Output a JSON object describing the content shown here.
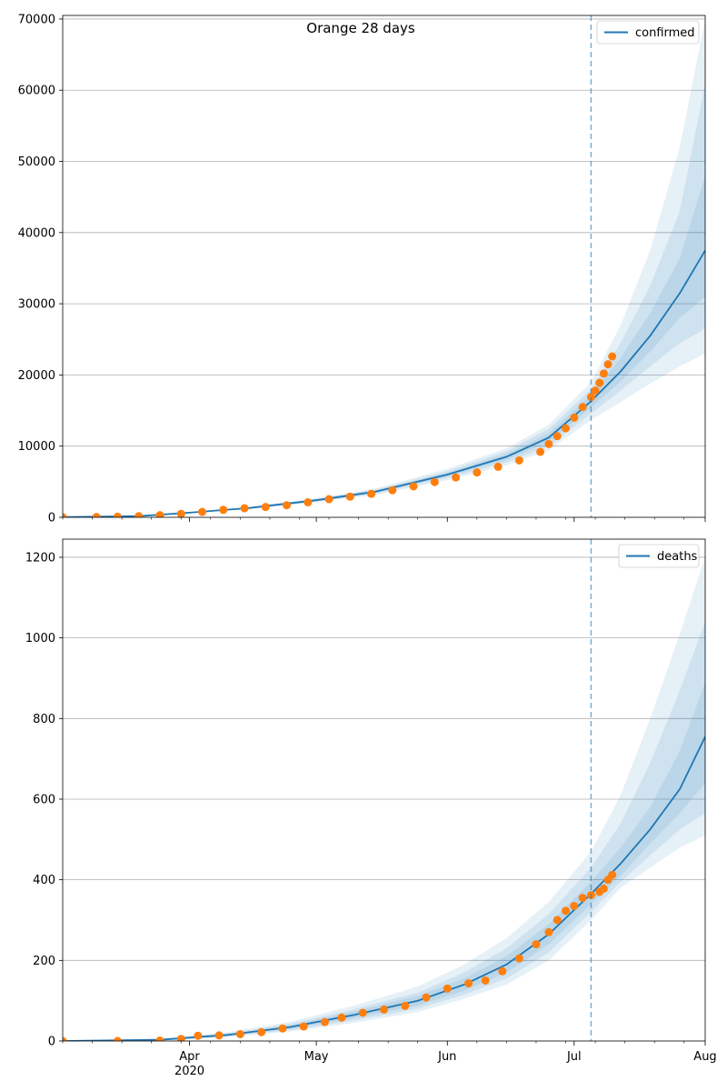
{
  "figure": {
    "title": "Orange 28 days"
  },
  "colors": {
    "median_line": "#1f77b4",
    "band": "#1f77b4",
    "observed": "#ff7f0e",
    "forecast_start": "#1f77b4",
    "grid": "#b0b0b0"
  },
  "x_axis": {
    "range": [
      "2020-03-02",
      "2020-08-01"
    ],
    "major_ticks": [
      {
        "date": "2020-04-01",
        "label": "Apr",
        "sublabel": "2020"
      },
      {
        "date": "2020-05-01",
        "label": "May",
        "sublabel": ""
      },
      {
        "date": "2020-06-01",
        "label": "Jun",
        "sublabel": ""
      },
      {
        "date": "2020-07-01",
        "label": "Jul",
        "sublabel": ""
      },
      {
        "date": "2020-08-01",
        "label": "Aug",
        "sublabel": ""
      }
    ]
  },
  "chart_data": [
    {
      "type": "line",
      "legend": {
        "label": "confirmed",
        "placement": "top-right"
      },
      "x_range": [
        "2020-03-02",
        "2020-08-01"
      ],
      "ylim": [
        0,
        70500
      ],
      "yticks": [
        "0",
        "10000",
        "20000",
        "30000",
        "40000",
        "50000",
        "60000",
        "70000"
      ],
      "ytick_values": [
        0,
        10000,
        20000,
        30000,
        40000,
        50000,
        60000,
        70000
      ],
      "grid": "horizontal",
      "forecast_start": "2020-07-05",
      "observed": [
        {
          "x": "2020-03-02",
          "y": 20
        },
        {
          "x": "2020-03-10",
          "y": 40
        },
        {
          "x": "2020-03-15",
          "y": 80
        },
        {
          "x": "2020-03-20",
          "y": 160
        },
        {
          "x": "2020-03-25",
          "y": 300
        },
        {
          "x": "2020-03-30",
          "y": 480
        },
        {
          "x": "2020-04-04",
          "y": 760
        },
        {
          "x": "2020-04-09",
          "y": 1050
        },
        {
          "x": "2020-04-14",
          "y": 1270
        },
        {
          "x": "2020-04-19",
          "y": 1450
        },
        {
          "x": "2020-04-24",
          "y": 1700
        },
        {
          "x": "2020-04-29",
          "y": 2100
        },
        {
          "x": "2020-05-04",
          "y": 2550
        },
        {
          "x": "2020-05-09",
          "y": 2900
        },
        {
          "x": "2020-05-14",
          "y": 3300
        },
        {
          "x": "2020-05-19",
          "y": 3800
        },
        {
          "x": "2020-05-24",
          "y": 4350
        },
        {
          "x": "2020-05-29",
          "y": 4950
        },
        {
          "x": "2020-06-03",
          "y": 5600
        },
        {
          "x": "2020-06-08",
          "y": 6300
        },
        {
          "x": "2020-06-13",
          "y": 7100
        },
        {
          "x": "2020-06-18",
          "y": 8000
        },
        {
          "x": "2020-06-23",
          "y": 9200
        },
        {
          "x": "2020-06-25",
          "y": 10300
        },
        {
          "x": "2020-06-27",
          "y": 11400
        },
        {
          "x": "2020-06-29",
          "y": 12500
        },
        {
          "x": "2020-07-01",
          "y": 14000
        },
        {
          "x": "2020-07-03",
          "y": 15500
        },
        {
          "x": "2020-07-05",
          "y": 16900
        },
        {
          "x": "2020-07-06",
          "y": 17800
        },
        {
          "x": "2020-07-07",
          "y": 18900
        },
        {
          "x": "2020-07-08",
          "y": 20200
        },
        {
          "x": "2020-07-09",
          "y": 21500
        },
        {
          "x": "2020-07-10",
          "y": 22600
        }
      ],
      "series": [
        {
          "name": "confirmed",
          "x": [
            "2020-03-02",
            "2020-03-20",
            "2020-04-01",
            "2020-04-15",
            "2020-05-01",
            "2020-05-15",
            "2020-06-01",
            "2020-06-15",
            "2020-06-25",
            "2020-07-05",
            "2020-07-12",
            "2020-07-19",
            "2020-07-26",
            "2020-08-01"
          ],
          "median": [
            20,
            160,
            650,
            1300,
            2400,
            3600,
            6000,
            8500,
            11200,
            16300,
            20500,
            25500,
            31500,
            37500
          ],
          "bands": [
            {
              "lower": [
                15,
                140,
                580,
                1150,
                2100,
                3150,
                5200,
                7300,
                9400,
                13700,
                16200,
                18800,
                21200,
                23000
              ],
              "upper": [
                25,
                180,
                720,
                1450,
                2700,
                4050,
                6800,
                9700,
                13000,
                19000,
                27000,
                37500,
                52000,
                70000
              ]
            },
            {
              "lower": [
                16,
                145,
                600,
                1200,
                2200,
                3300,
                5500,
                7700,
                10000,
                14600,
                17800,
                21200,
                24500,
                26500
              ],
              "upper": [
                24,
                175,
                700,
                1400,
                2600,
                3900,
                6500,
                9300,
                12400,
                18000,
                24500,
                32500,
                43000,
                61000
              ]
            },
            {
              "lower": [
                18,
                150,
                620,
                1240,
                2290,
                3440,
                5750,
                8100,
                10600,
                15400,
                19100,
                23300,
                28000,
                31000
              ],
              "upper": [
                22,
                170,
                680,
                1360,
                2510,
                3760,
                6250,
                8900,
                11800,
                17200,
                22400,
                28700,
                36400,
                48000
              ]
            }
          ]
        }
      ]
    },
    {
      "type": "line",
      "legend": {
        "label": "deaths",
        "placement": "top-right"
      },
      "x_range": [
        "2020-03-02",
        "2020-08-01"
      ],
      "ylim": [
        0,
        1245
      ],
      "yticks": [
        "0",
        "200",
        "400",
        "600",
        "800",
        "1000",
        "1200"
      ],
      "ytick_values": [
        0,
        200,
        400,
        600,
        800,
        1000,
        1200
      ],
      "grid": "horizontal",
      "forecast_start": "2020-07-05",
      "observed": [
        {
          "x": "2020-03-02",
          "y": 0
        },
        {
          "x": "2020-03-15",
          "y": 0
        },
        {
          "x": "2020-03-25",
          "y": 1
        },
        {
          "x": "2020-03-30",
          "y": 5
        },
        {
          "x": "2020-04-03",
          "y": 13
        },
        {
          "x": "2020-04-08",
          "y": 14
        },
        {
          "x": "2020-04-13",
          "y": 17
        },
        {
          "x": "2020-04-18",
          "y": 22
        },
        {
          "x": "2020-04-23",
          "y": 31
        },
        {
          "x": "2020-04-28",
          "y": 36
        },
        {
          "x": "2020-05-03",
          "y": 47
        },
        {
          "x": "2020-05-07",
          "y": 58
        },
        {
          "x": "2020-05-12",
          "y": 70
        },
        {
          "x": "2020-05-17",
          "y": 78
        },
        {
          "x": "2020-05-22",
          "y": 87
        },
        {
          "x": "2020-05-27",
          "y": 108
        },
        {
          "x": "2020-06-01",
          "y": 130
        },
        {
          "x": "2020-06-06",
          "y": 143
        },
        {
          "x": "2020-06-10",
          "y": 150
        },
        {
          "x": "2020-06-14",
          "y": 173
        },
        {
          "x": "2020-06-18",
          "y": 205
        },
        {
          "x": "2020-06-22",
          "y": 240
        },
        {
          "x": "2020-06-25",
          "y": 270
        },
        {
          "x": "2020-06-27",
          "y": 300
        },
        {
          "x": "2020-06-29",
          "y": 323
        },
        {
          "x": "2020-07-01",
          "y": 335
        },
        {
          "x": "2020-07-03",
          "y": 355
        },
        {
          "x": "2020-07-05",
          "y": 362
        },
        {
          "x": "2020-07-07",
          "y": 370
        },
        {
          "x": "2020-07-08",
          "y": 378
        },
        {
          "x": "2020-07-09",
          "y": 400
        },
        {
          "x": "2020-07-10",
          "y": 412
        }
      ],
      "series": [
        {
          "name": "deaths",
          "x": [
            "2020-03-02",
            "2020-03-25",
            "2020-04-10",
            "2020-04-25",
            "2020-05-10",
            "2020-05-25",
            "2020-06-05",
            "2020-06-15",
            "2020-06-25",
            "2020-07-05",
            "2020-07-12",
            "2020-07-19",
            "2020-07-26",
            "2020-08-01"
          ],
          "median": [
            0,
            3,
            15,
            35,
            65,
            100,
            140,
            190,
            265,
            365,
            440,
            525,
            625,
            755
          ],
          "bands": [
            {
              "lower": [
                0,
                1,
                10,
                24,
                45,
                72,
                105,
                140,
                200,
                300,
                380,
                430,
                480,
                510
              ],
              "upper": [
                2,
                6,
                22,
                48,
                88,
                135,
                190,
                255,
                345,
                470,
                610,
                800,
                1010,
                1200
              ]
            },
            {
              "lower": [
                0,
                2,
                11,
                27,
                51,
                80,
                115,
                155,
                220,
                320,
                395,
                460,
                525,
                565
              ],
              "upper": [
                1,
                5,
                19,
                43,
                79,
                120,
                170,
                230,
                315,
                430,
                540,
                690,
                870,
                1040
              ]
            },
            {
              "lower": [
                0,
                2,
                13,
                30,
                57,
                88,
                125,
                170,
                240,
                340,
                410,
                490,
                565,
                640
              ],
              "upper": [
                1,
                4,
                17,
                39,
                73,
                112,
                155,
                210,
                290,
                395,
                480,
                580,
                720,
                890
              ]
            }
          ]
        }
      ]
    }
  ]
}
